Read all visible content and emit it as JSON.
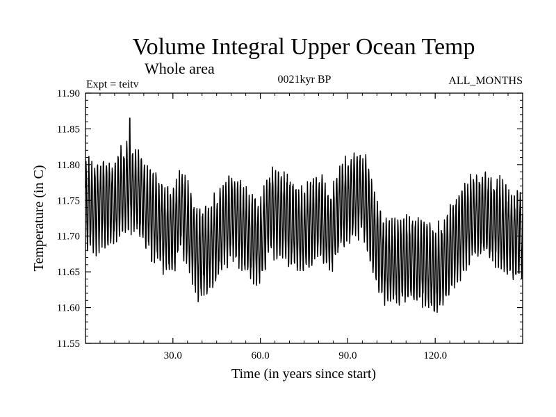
{
  "chart_data": {
    "type": "line",
    "title": "Volume Integral Upper Ocean Temp",
    "subtitle": "Whole area",
    "experiment_label": "Expt = teitv",
    "period_label": "0021kyr BP",
    "months_label": "ALL_MONTHS",
    "xlabel": "Time (in years since start)",
    "ylabel": "Temperature (in C)",
    "xlim": [
      0,
      150
    ],
    "ylim": [
      11.55,
      11.9
    ],
    "x_ticks": [
      {
        "value": 30,
        "label": "30.0"
      },
      {
        "value": 60,
        "label": "60.0"
      },
      {
        "value": 90,
        "label": "90.0"
      },
      {
        "value": 120,
        "label": "120.0"
      }
    ],
    "y_ticks": [
      {
        "value": 11.55,
        "label": "11.55"
      },
      {
        "value": 11.6,
        "label": "11.60"
      },
      {
        "value": 11.65,
        "label": "11.65"
      },
      {
        "value": 11.7,
        "label": "11.70"
      },
      {
        "value": 11.75,
        "label": "11.75"
      },
      {
        "value": 11.8,
        "label": "11.80"
      },
      {
        "value": 11.85,
        "label": "11.85"
      },
      {
        "value": 11.9,
        "label": "11.90"
      }
    ],
    "grid": false,
    "series": [
      {
        "name": "volume integral upper ocean temperature",
        "seasonal_amplitude": 0.055,
        "annual_mean": {
          "year": [
            0,
            3,
            6,
            10,
            13,
            15,
            18,
            21,
            24,
            27,
            30,
            33,
            36,
            39,
            42,
            45,
            48,
            51,
            54,
            57,
            60,
            63,
            66,
            69,
            72,
            75,
            78,
            81,
            84,
            87,
            90,
            93,
            96,
            99,
            102,
            105,
            108,
            111,
            114,
            117,
            119,
            121,
            124,
            127,
            130,
            133,
            136,
            139,
            142,
            145,
            148,
            150
          ],
          "value": [
            11.745,
            11.74,
            11.745,
            11.745,
            11.765,
            11.775,
            11.76,
            11.74,
            11.725,
            11.71,
            11.705,
            11.74,
            11.7,
            11.675,
            11.68,
            11.695,
            11.72,
            11.725,
            11.71,
            11.695,
            11.69,
            11.735,
            11.73,
            11.725,
            11.71,
            11.705,
            11.72,
            11.725,
            11.705,
            11.735,
            11.75,
            11.76,
            11.75,
            11.7,
            11.67,
            11.66,
            11.665,
            11.665,
            11.665,
            11.665,
            11.65,
            11.65,
            11.67,
            11.695,
            11.715,
            11.725,
            11.73,
            11.725,
            11.715,
            11.705,
            11.7,
            11.705
          ]
        },
        "peak_value": 11.865,
        "peak_year": 15,
        "trough_value": 11.595,
        "trough_year": 120
      }
    ]
  }
}
